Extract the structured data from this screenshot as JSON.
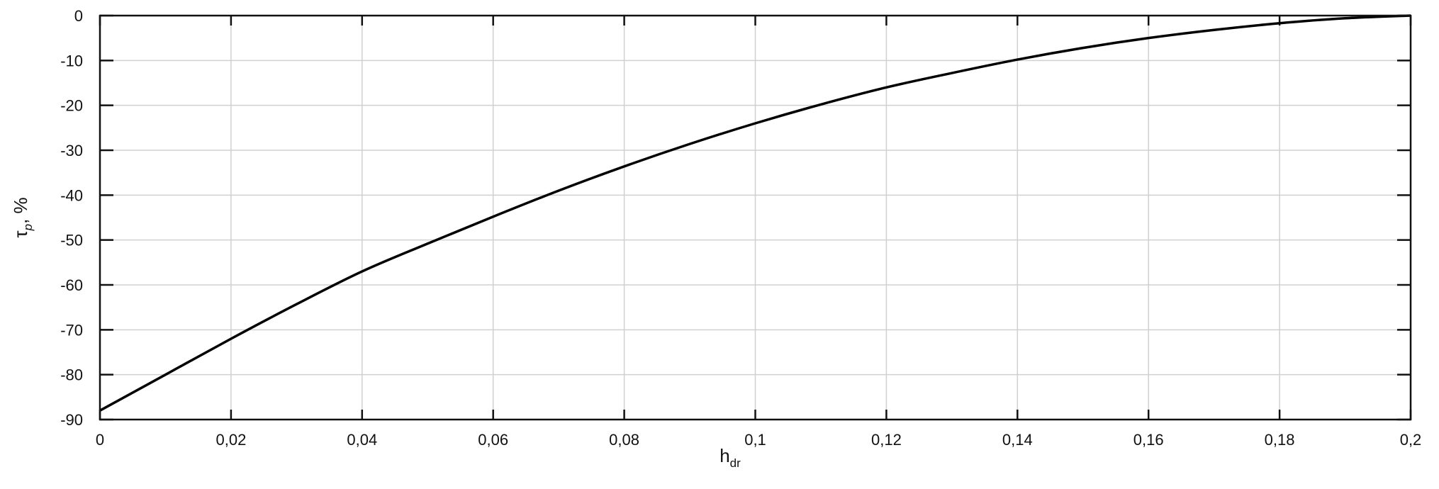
{
  "chart_data": {
    "type": "line",
    "title": "",
    "xlabel": "h",
    "xlabel_sub": "dr",
    "ylabel": "τ",
    "ylabel_sub": "p",
    "ylabel_suffix": ", %",
    "xlim": [
      0,
      0.2
    ],
    "ylim": [
      -90,
      0
    ],
    "grid": true,
    "x_ticks": [
      0,
      0.02,
      0.04,
      0.06,
      0.08,
      0.1,
      0.12,
      0.14,
      0.16,
      0.18,
      0.2
    ],
    "x_tick_labels": [
      "0",
      "0,02",
      "0,04",
      "0,06",
      "0,08",
      "0,1",
      "0,12",
      "0,14",
      "0,16",
      "0,18",
      "0,2"
    ],
    "y_ticks": [
      0,
      -10,
      -20,
      -30,
      -40,
      -50,
      -60,
      -70,
      -80,
      -90
    ],
    "y_tick_labels": [
      "0",
      "-10",
      "-20",
      "-30",
      "-40",
      "-50",
      "-60",
      "-70",
      "-80",
      "-90"
    ],
    "series": [
      {
        "color": "#000000",
        "x": [
          0,
          0.01,
          0.02,
          0.03,
          0.04,
          0.05,
          0.06,
          0.07,
          0.08,
          0.09,
          0.1,
          0.11,
          0.12,
          0.13,
          0.14,
          0.15,
          0.16,
          0.17,
          0.18,
          0.19,
          0.2
        ],
        "y": [
          -88,
          -80,
          -72,
          -64.3,
          -57,
          -50.8,
          -44.8,
          -39,
          -33.6,
          -28.6,
          -24,
          -19.8,
          -16,
          -12.8,
          -9.8,
          -7.2,
          -5,
          -3.2,
          -1.7,
          -0.6,
          0
        ]
      }
    ]
  }
}
